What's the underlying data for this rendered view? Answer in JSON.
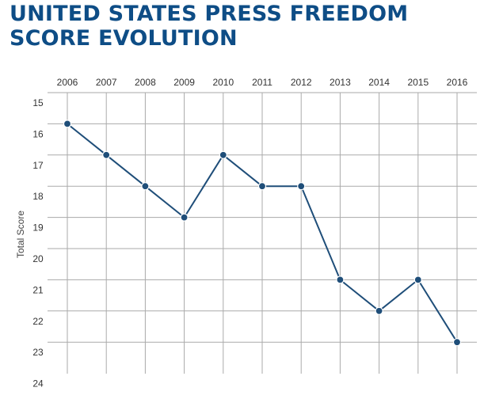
{
  "title_lines": [
    "UNITED STATES PRESS FREEDOM",
    "SCORE EVOLUTION"
  ],
  "colors": {
    "title": "#0e4d86",
    "line": "#1f4e79",
    "grid": "#aaaaaa"
  },
  "chart_data": {
    "type": "line",
    "title": "UNITED STATES PRESS FREEDOM SCORE EVOLUTION",
    "xlabel": "",
    "ylabel": "Total Score",
    "x": [
      "2006",
      "2007",
      "2008",
      "2009",
      "2010",
      "2011",
      "2012",
      "2013",
      "2014",
      "2015",
      "2016"
    ],
    "series": [
      {
        "values": [
          16,
          17,
          18,
          19,
          17,
          18,
          18,
          21,
          22,
          21,
          23
        ]
      }
    ],
    "ylim": [
      15,
      24
    ],
    "y_inverted": true,
    "yticks": [
      15,
      16,
      17,
      18,
      19,
      20,
      21,
      22,
      23,
      24
    ],
    "x_axis_position": "top",
    "grid": true,
    "legend": "none"
  }
}
